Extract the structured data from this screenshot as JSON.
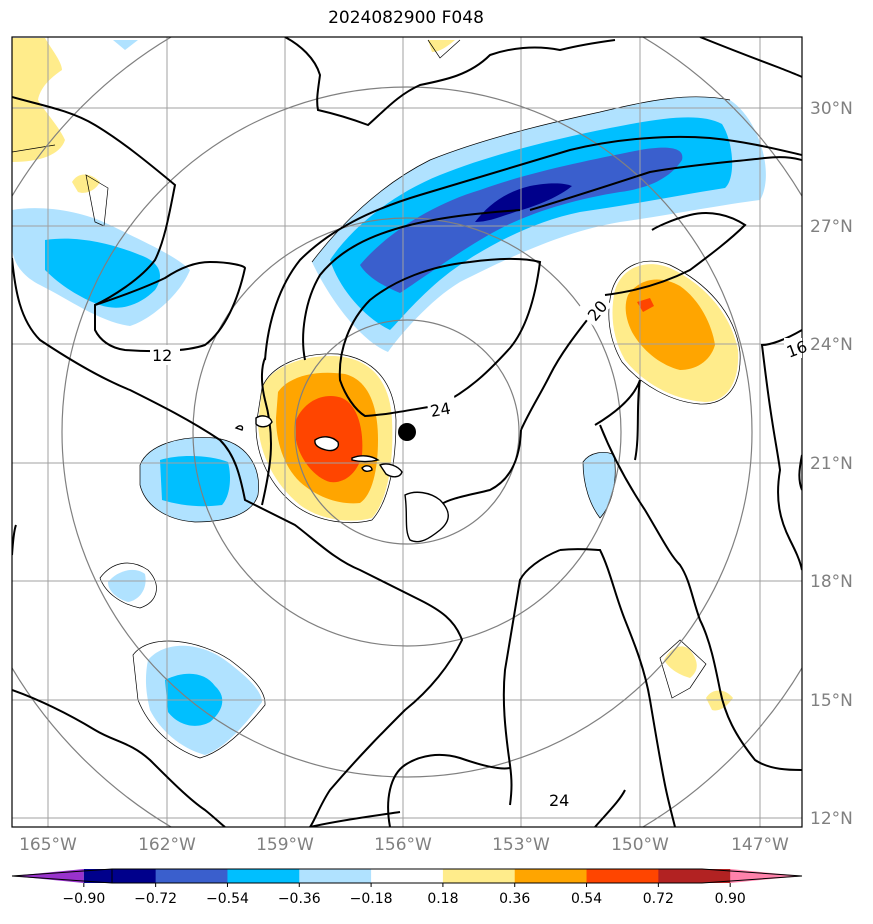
{
  "title": "2024082900 F048",
  "map": {
    "lon_ticks": [
      "165°W",
      "162°W",
      "159°W",
      "156°W",
      "153°W",
      "150°W",
      "147°W"
    ],
    "lat_ticks": [
      "30°N",
      "27°N",
      "24°N",
      "21°N",
      "18°N",
      "15°N",
      "12°N"
    ],
    "contour_labels": [
      "12",
      "20",
      "24",
      "24",
      "16"
    ],
    "storm_center": {
      "lon": -155.9,
      "lat": 21.8
    }
  },
  "colorbar": {
    "ticks": [
      "−0.90",
      "−0.72",
      "−0.54",
      "−0.36",
      "−0.18",
      "0.18",
      "0.36",
      "0.54",
      "0.72",
      "0.90"
    ],
    "colors": [
      "#9932cc",
      "#00008b",
      "#3a5fcd",
      "#00bfff",
      "#b0e2ff",
      "#ffffff",
      "#ffec8b",
      "#ffa500",
      "#ff4500",
      "#b22222",
      "#ff82ab"
    ]
  },
  "colors": {
    "grid": "#a0a0a0",
    "range_rings": "#808080",
    "contours": "#000000",
    "tick_labels": "#808080"
  }
}
